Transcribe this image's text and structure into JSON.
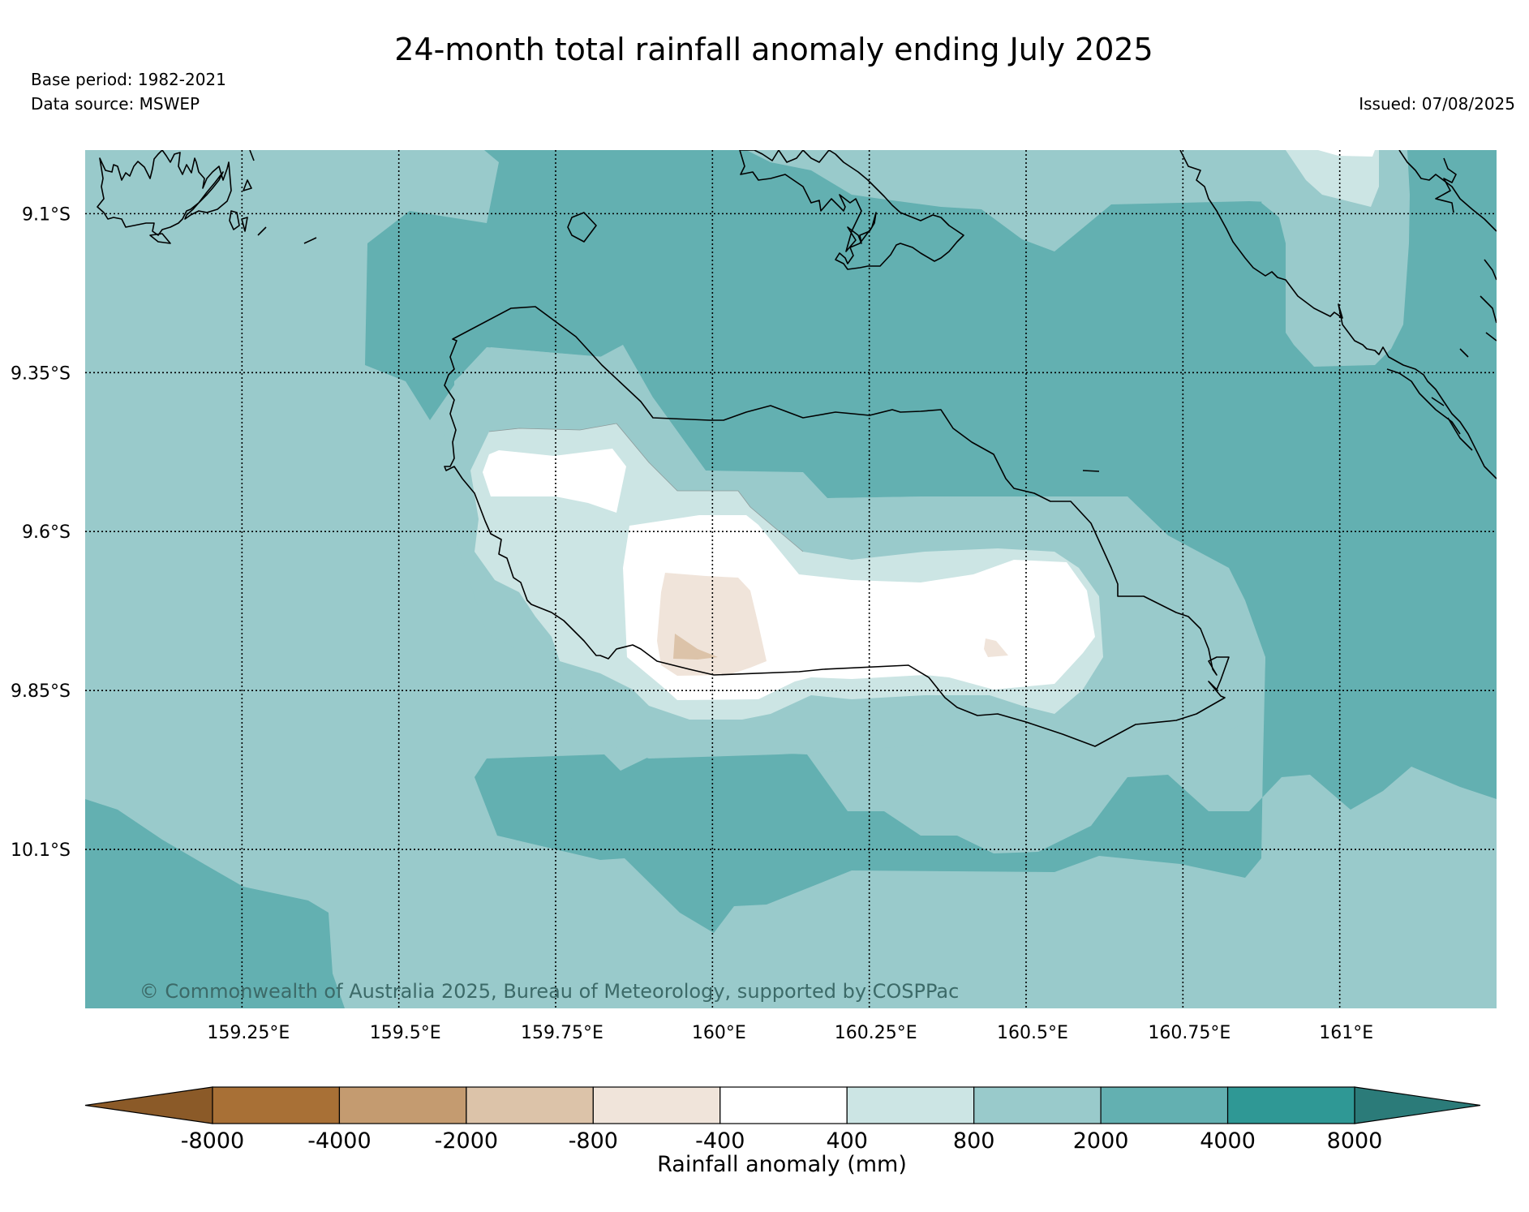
{
  "title": "24-month total rainfall anomaly ending July 2025",
  "base_period": "Base period: 1982-2021",
  "data_source": "Data source: MSWEP",
  "issued": "Issued: 07/08/2025",
  "copyright": "© Commonwealth of Australia 2025, Bureau of Meteorology, supported by COSPPac",
  "map": {
    "lon_range": [
      159.0,
      161.25
    ],
    "lat_range": [
      -10.35,
      -9.0
    ],
    "lon_ticks": [
      159.25,
      159.5,
      159.75,
      160.0,
      160.25,
      160.5,
      160.75,
      161.0
    ],
    "lon_tick_labels": [
      "159.25°E",
      "159.5°E",
      "159.75°E",
      "160°E",
      "160.25°E",
      "160.5°E",
      "160.75°E",
      "161°E"
    ],
    "lat_ticks": [
      -9.1,
      -9.35,
      -9.6,
      -9.85,
      -10.1
    ],
    "lat_tick_labels": [
      "9.1°S",
      "9.35°S",
      "9.6°S",
      "9.85°S",
      "10.1°S"
    ],
    "gridlines": true
  },
  "colorbar": {
    "label": "Rainfall anomaly (mm)",
    "boundaries": [
      -8000,
      -4000,
      -2000,
      -800,
      -400,
      400,
      800,
      2000,
      4000,
      8000
    ],
    "tick_labels": [
      "-8000",
      "-4000",
      "-2000",
      "-800",
      "-400",
      "400",
      "800",
      "2000",
      "4000",
      "8000"
    ],
    "colors": [
      "#a87036",
      "#c49b70",
      "#dcc3a9",
      "#f0e4da",
      "#ffffff",
      "#cce5e4",
      "#99cacb",
      "#63b0b1",
      "#2f9895"
    ],
    "under_color": "#8b5a28",
    "over_color": "#2b7b79",
    "extend": "both"
  }
}
